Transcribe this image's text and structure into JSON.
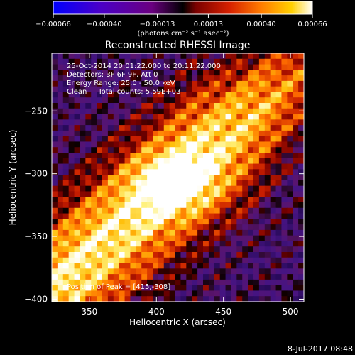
{
  "chart_data": {
    "type": "heatmap",
    "title": "Reconstructed RHESSI Image",
    "xlabel": "Heliocentric X (arcsec)",
    "ylabel": "Heliocentric Y (arcsec)",
    "xlim": [
      322,
      510
    ],
    "ylim": [
      -402,
      -204
    ],
    "x_ticks": [
      350,
      400,
      450,
      500
    ],
    "y_ticks": [
      -250,
      -300,
      -350,
      -400
    ],
    "x_tick_labels": [
      "350",
      "400",
      "450",
      "500"
    ],
    "y_tick_labels": [
      "−250",
      "−300",
      "−350",
      "−400"
    ],
    "colorbar": {
      "min": -0.00066,
      "max": 0.00066,
      "ticks": [
        -0.00066,
        -0.0004,
        -0.00013,
        0.00013,
        0.0004,
        0.00066
      ],
      "tick_labels": [
        "−0.00066",
        "−0.00040",
        "−0.00013",
        "0.00013",
        "0.00040",
        "0.00066"
      ],
      "units_label": "(photons cm⁻² s⁻¹ asec⁻²)"
    },
    "annotations": [
      "25-Oct-2014 20:01:22.000 to 20:11:22.000",
      "Detectors: 3F 6F 9F, Att 0",
      "Energy Range: 25.0 - 50.0 keV",
      "Clean     Total counts: 5.59E+03"
    ],
    "peak_label": "Position of Peak = [415,-308]",
    "peak": [
      415,
      -308
    ],
    "grid": false
  },
  "footer": {
    "timestamp": "8-Jul-2017 08:48"
  }
}
